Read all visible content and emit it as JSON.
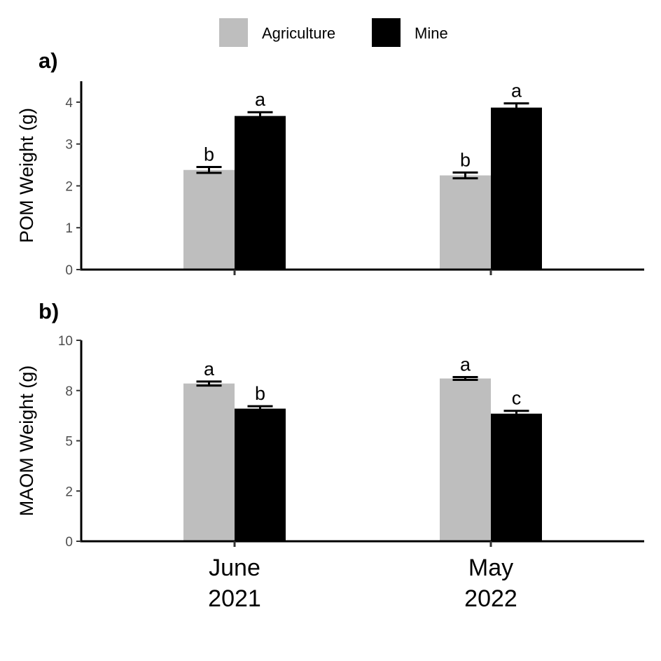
{
  "chart_data": {
    "type": "bar",
    "legend": {
      "placement": "top",
      "entries": [
        {
          "label": "Agriculture",
          "color": "#bebebe"
        },
        {
          "label": "Mine",
          "color": "#000000"
        }
      ]
    },
    "categories": [
      [
        "June",
        "2021"
      ],
      [
        "May",
        "2022"
      ]
    ],
    "panels": [
      {
        "tag": "a)",
        "ylabel": "POM Weight (g)",
        "ylim": [
          0,
          4.5
        ],
        "yticks": [
          0,
          1,
          2,
          3,
          4
        ],
        "ytick_labels": [
          "0",
          "1",
          "2",
          "3",
          "4"
        ],
        "series": [
          {
            "name": "Agriculture",
            "color": "#bebebe",
            "values": [
              2.38,
              2.25
            ],
            "errors": [
              0.07,
              0.07
            ],
            "letters": [
              "b",
              "b"
            ]
          },
          {
            "name": "Mine",
            "color": "#000000",
            "values": [
              3.67,
              3.87
            ],
            "errors": [
              0.09,
              0.1
            ],
            "letters": [
              "a",
              "a"
            ]
          }
        ]
      },
      {
        "tag": "b)",
        "ylabel": "MAOM Weight (g)",
        "ylim": [
          0,
          10
        ],
        "yticks": [
          0,
          2.5,
          5,
          7.5,
          10
        ],
        "ytick_labels": [
          "0",
          "2",
          "5",
          "8",
          "10"
        ],
        "series": [
          {
            "name": "Agriculture",
            "color": "#bebebe",
            "values": [
              7.85,
              8.1
            ],
            "errors": [
              0.1,
              0.07
            ],
            "letters": [
              "a",
              "a"
            ]
          },
          {
            "name": "Mine",
            "color": "#000000",
            "values": [
              6.6,
              6.35
            ],
            "errors": [
              0.12,
              0.14
            ],
            "letters": [
              "b",
              "c"
            ]
          }
        ]
      }
    ],
    "grid": false
  }
}
